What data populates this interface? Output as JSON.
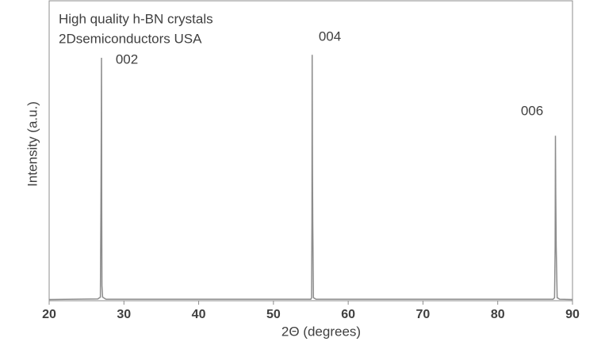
{
  "chart_data": {
    "type": "line",
    "annotations": [
      "High quality h-BN crystals",
      "2Dsemiconductors USA",
      "002",
      "004",
      "006"
    ],
    "xlabel": "2Θ (degrees)",
    "ylabel": "Intensity (a.u.)",
    "x": [
      20,
      26.5,
      26.85,
      26.92,
      26.97,
      27.0,
      27.03,
      27.06,
      27.15,
      27.6,
      55.0,
      55.1,
      55.15,
      55.18,
      55.22,
      55.26,
      55.35,
      55.7,
      87.4,
      87.6,
      87.68,
      87.72,
      87.76,
      87.82,
      87.95,
      88.3,
      90
    ],
    "series": [
      {
        "color": "#8c8c8c",
        "values": [
          0.4,
          0.6,
          1.2,
          30,
          58,
          81,
          30,
          5,
          1.2,
          0.5,
          0.5,
          1,
          26,
          82,
          45,
          26,
          1,
          0.5,
          0.5,
          1,
          18,
          55,
          36,
          18,
          1,
          0.5,
          0.4
        ]
      }
    ],
    "xlim": [
      20,
      90
    ],
    "ylim": [
      0,
      100
    ],
    "xticks": [
      20,
      30,
      40,
      50,
      60,
      70,
      80,
      90
    ]
  }
}
